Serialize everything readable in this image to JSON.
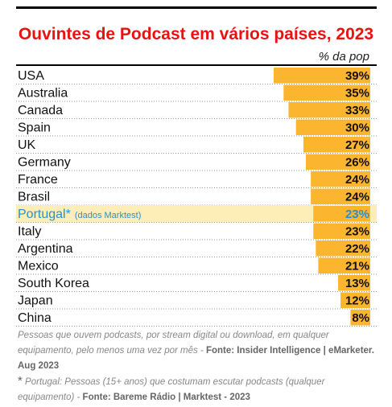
{
  "chart_data": {
    "type": "bar",
    "orientation": "horizontal",
    "title": "Ouvintes de Podcast em vários países, 2023",
    "unit_label": "% da pop",
    "categories": [
      "USA",
      "Australia",
      "Canada",
      "Spain",
      "UK",
      "Germany",
      "France",
      "Brasil",
      "Portugal*",
      "Italy",
      "Argentina",
      "Mexico",
      "South Korea",
      "Japan",
      "China"
    ],
    "values": [
      39,
      35,
      33,
      30,
      27,
      26,
      24,
      24,
      23,
      23,
      22,
      21,
      13,
      12,
      8
    ],
    "value_labels": [
      "39%",
      "35%",
      "33%",
      "30%",
      "27%",
      "26%",
      "24%",
      "24%",
      "23%",
      "23%",
      "22%",
      "21%",
      "13%",
      "12%",
      "8%"
    ],
    "highlight": {
      "category": "Portugal*",
      "sublabel": "(dados Marktest)",
      "row_color": "#fdeeb7",
      "text_color": "#2a8fd0"
    },
    "bar_color": "#fbb52f",
    "xlim": [
      0,
      39
    ]
  },
  "footnotes": {
    "note1_text": "Pessoas que ouvem podcasts, por stream digital ou download, em qualquer equipamento, pelo menos uma vez por mês - ",
    "note1_source": "Fonte: Insider Intelligence | eMarketer. Aug 2023",
    "note2_star": "*",
    "note2_text": "Portugal: Pessoas (15+ anos) que costumam escutar podcasts (qualquer equipamento) - ",
    "note2_source": "Fonte: Bareme Rádio | Marktest - 2023"
  }
}
